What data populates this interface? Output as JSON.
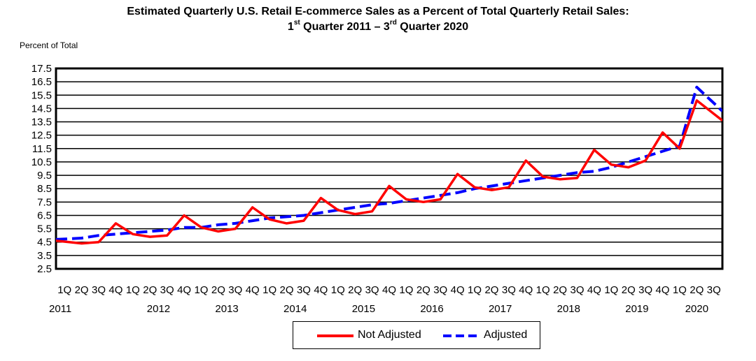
{
  "chart_data": {
    "type": "line",
    "title_line1": "Estimated Quarterly U.S. Retail E-commerce Sales as a Percent of Total Quarterly Retail Sales:",
    "title_line2": {
      "a": "1",
      "a_sup": "st",
      "b": " Quarter 2011 – 3",
      "b_sup": "rd",
      "c": " Quarter 2020"
    },
    "ylabel": "Percent of Total",
    "ylim": [
      2.5,
      17.5
    ],
    "yticks": [
      "2.5",
      "3.5",
      "4.5",
      "5.5",
      "6.5",
      "7.5",
      "8.5",
      "9.5",
      "10.5",
      "11.5",
      "12.5",
      "13.5",
      "14.5",
      "15.5",
      "16.5",
      "17.5"
    ],
    "quarters": [
      "1Q",
      "2Q",
      "3Q",
      "4Q",
      "1Q",
      "2Q",
      "3Q",
      "4Q",
      "1Q",
      "2Q",
      "3Q",
      "4Q",
      "1Q",
      "2Q",
      "3Q",
      "4Q",
      "1Q",
      "2Q",
      "3Q",
      "4Q",
      "1Q",
      "2Q",
      "3Q",
      "4Q",
      "1Q",
      "2Q",
      "3Q",
      "4Q",
      "1Q",
      "2Q",
      "3Q",
      "4Q",
      "1Q",
      "2Q",
      "3Q",
      "4Q",
      "1Q",
      "2Q",
      "3Q"
    ],
    "years": [
      "2011",
      "2012",
      "2013",
      "2014",
      "2015",
      "2016",
      "2017",
      "2018",
      "2019",
      "2020"
    ],
    "grid": true,
    "series": [
      {
        "name": "Not Adjusted",
        "color": "#ff0000",
        "dash": "solid",
        "values": [
          4.6,
          4.4,
          4.5,
          5.9,
          5.1,
          4.9,
          5.0,
          6.5,
          5.6,
          5.3,
          5.5,
          7.1,
          6.2,
          5.9,
          6.1,
          7.8,
          6.9,
          6.6,
          6.8,
          8.7,
          7.7,
          7.5,
          7.7,
          9.6,
          8.6,
          8.4,
          8.6,
          10.6,
          9.4,
          9.2,
          9.3,
          11.4,
          10.3,
          10.1,
          10.6,
          12.7,
          11.5,
          15.1,
          13.6
        ]
      },
      {
        "name": "Adjusted",
        "color": "#0000ff",
        "dash": "dashed",
        "values": [
          4.7,
          4.8,
          5.0,
          5.1,
          5.2,
          5.3,
          5.4,
          5.6,
          5.6,
          5.8,
          5.9,
          6.1,
          6.3,
          6.4,
          6.5,
          6.7,
          6.9,
          7.1,
          7.3,
          7.4,
          7.6,
          7.8,
          8.0,
          8.2,
          8.5,
          8.7,
          8.9,
          9.1,
          9.3,
          9.5,
          9.7,
          9.8,
          10.1,
          10.5,
          10.9,
          11.3,
          11.7,
          16.1,
          14.3
        ]
      }
    ]
  }
}
